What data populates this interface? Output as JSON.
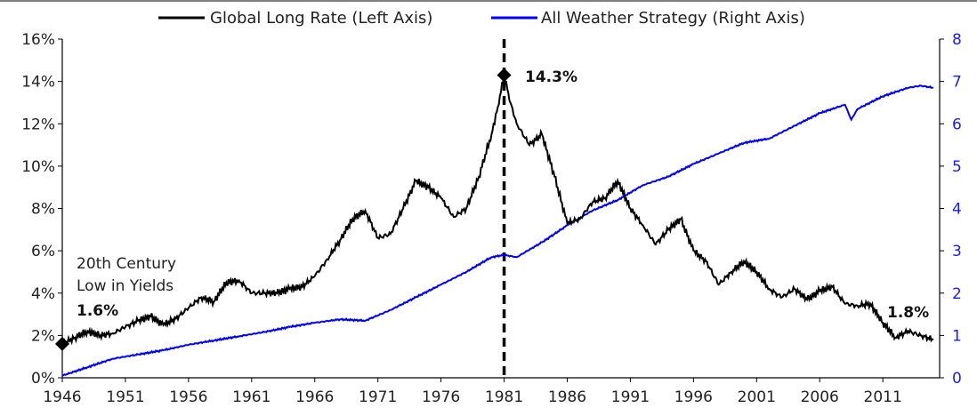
{
  "chart_data": {
    "type": "line",
    "title": "",
    "xlabel": "",
    "x_ticks": [
      "1946",
      "1951",
      "1956",
      "1961",
      "1966",
      "1971",
      "1976",
      "1981",
      "1986",
      "1991",
      "1996",
      "2001",
      "2006",
      "2011"
    ],
    "xlim": [
      1946,
      2015.5
    ],
    "y_left": {
      "label": "",
      "ticks": [
        "0%",
        "2%",
        "4%",
        "6%",
        "8%",
        "10%",
        "12%",
        "14%",
        "16%"
      ],
      "lim": [
        0,
        16
      ],
      "unit": "%"
    },
    "y_right": {
      "label": "",
      "ticks": [
        "0",
        "1",
        "2",
        "3",
        "4",
        "5",
        "6",
        "7",
        "8"
      ],
      "lim": [
        0,
        8
      ]
    },
    "legend": {
      "placement": "top-center"
    },
    "series": [
      {
        "name": "Global Long Rate (Left Axis)",
        "axis": "left",
        "color": "#000000",
        "x": [
          1946,
          1947,
          1948,
          1949,
          1950,
          1951,
          1952,
          1953,
          1954,
          1955,
          1956,
          1957,
          1958,
          1959,
          1960,
          1961,
          1962,
          1963,
          1964,
          1965,
          1966,
          1967,
          1968,
          1969,
          1970,
          1971,
          1972,
          1973,
          1974,
          1975,
          1976,
          1977,
          1978,
          1979,
          1980,
          1980.5,
          1981,
          1981.5,
          1982,
          1983,
          1984,
          1985,
          1986,
          1987,
          1988,
          1989,
          1990,
          1991,
          1992,
          1993,
          1994,
          1995,
          1996,
          1997,
          1998,
          1999,
          2000,
          2001,
          2002,
          2003,
          2004,
          2005,
          2006,
          2007,
          2008,
          2009,
          2010,
          2011,
          2012,
          2013,
          2014,
          2015
        ],
        "y": [
          1.6,
          1.9,
          2.2,
          2.0,
          2.1,
          2.4,
          2.7,
          2.9,
          2.5,
          2.8,
          3.3,
          3.8,
          3.6,
          4.5,
          4.6,
          4.0,
          4.0,
          4.0,
          4.2,
          4.3,
          4.8,
          5.6,
          6.5,
          7.5,
          7.9,
          6.6,
          6.8,
          8.0,
          9.3,
          9.0,
          8.5,
          7.6,
          8.0,
          9.5,
          11.5,
          12.8,
          14.3,
          13.0,
          12.0,
          11.0,
          11.5,
          9.5,
          7.3,
          7.5,
          8.3,
          8.5,
          9.3,
          8.0,
          7.2,
          6.3,
          7.0,
          7.5,
          6.0,
          5.5,
          4.4,
          5.0,
          5.5,
          5.0,
          4.2,
          3.8,
          4.2,
          3.7,
          4.1,
          4.3,
          3.5,
          3.4,
          3.5,
          2.6,
          1.9,
          2.2,
          2.0,
          1.8
        ]
      },
      {
        "name": "All Weather Strategy (Right Axis)",
        "axis": "right",
        "color": "#0000ff",
        "x": [
          1946,
          1948,
          1950,
          1952,
          1954,
          1956,
          1958,
          1960,
          1962,
          1964,
          1966,
          1968,
          1970,
          1972,
          1974,
          1976,
          1978,
          1980,
          1981,
          1982,
          1984,
          1986,
          1988,
          1990,
          1992,
          1994,
          1996,
          1998,
          2000,
          2002,
          2004,
          2006,
          2008,
          2008.5,
          2009,
          2011,
          2013,
          2014,
          2015
        ],
        "y": [
          0.05,
          0.25,
          0.45,
          0.55,
          0.65,
          0.78,
          0.88,
          0.98,
          1.08,
          1.2,
          1.3,
          1.38,
          1.35,
          1.6,
          1.9,
          2.2,
          2.5,
          2.85,
          2.9,
          2.85,
          3.2,
          3.6,
          3.95,
          4.2,
          4.55,
          4.75,
          5.05,
          5.3,
          5.55,
          5.65,
          5.95,
          6.25,
          6.45,
          6.1,
          6.35,
          6.65,
          6.85,
          6.9,
          6.85
        ]
      }
    ],
    "vertical_marker": {
      "x": 1981,
      "style": "dashed"
    },
    "annotations": [
      {
        "text_lines": [
          "20th Century",
          "Low in Yields"
        ],
        "value_label": "1.6%",
        "x": 1946,
        "y": 1.6
      },
      {
        "value_label": "14.3%",
        "x": 1981,
        "y": 14.3
      },
      {
        "value_label": "1.8%",
        "x": 2015,
        "y": 1.8
      }
    ]
  }
}
